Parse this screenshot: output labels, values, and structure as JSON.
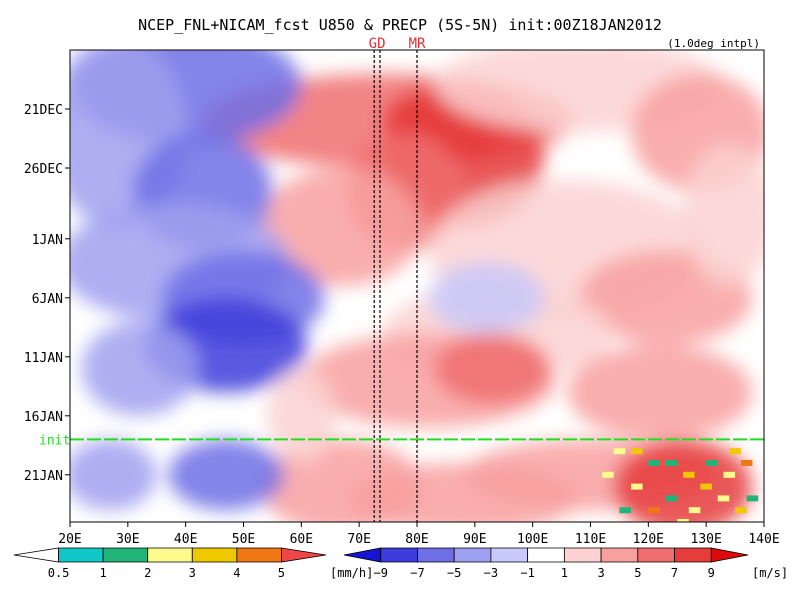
{
  "chart_data": {
    "type": "heatmap",
    "title": "NCEP_FNL+NICAM_fcst U850 & PRECP (5S-5N) init:00Z18JAN2012",
    "note": "(1.0deg intpl)",
    "x_axis": {
      "range": [
        20,
        140
      ],
      "ticks": [
        {
          "value": 20,
          "label": "20E"
        },
        {
          "value": 30,
          "label": "30E"
        },
        {
          "value": 40,
          "label": "40E"
        },
        {
          "value": 50,
          "label": "50E"
        },
        {
          "value": 60,
          "label": "60E"
        },
        {
          "value": 70,
          "label": "70E"
        },
        {
          "value": 80,
          "label": "80E"
        },
        {
          "value": 90,
          "label": "90E"
        },
        {
          "value": 100,
          "label": "100E"
        },
        {
          "value": 110,
          "label": "110E"
        },
        {
          "value": 120,
          "label": "120E"
        },
        {
          "value": 130,
          "label": "130E"
        },
        {
          "value": 140,
          "label": "140E"
        }
      ]
    },
    "y_axis": {
      "range": [
        "2011-12-16",
        "2012-01-25"
      ],
      "inverted": true,
      "ticks": [
        {
          "value": "2011-12-21",
          "label": "21DEC"
        },
        {
          "value": "2011-12-26",
          "label": "26DEC"
        },
        {
          "value": "2012-01-01",
          "label": "1JAN"
        },
        {
          "value": "2012-01-06",
          "label": "6JAN"
        },
        {
          "value": "2012-01-11",
          "label": "11JAN"
        },
        {
          "value": "2012-01-16",
          "label": "16JAN"
        },
        {
          "value": "2012-01-21",
          "label": "21JAN"
        }
      ]
    },
    "init_line": {
      "label": "init",
      "value": "2012-01-18",
      "color": "#22dd22"
    },
    "reference_lines": [
      {
        "label": "GD",
        "values": [
          72.6,
          73.6
        ],
        "color": "#e03030"
      },
      {
        "label": "MR",
        "values": [
          80
        ],
        "color": "#e03030"
      }
    ],
    "precip_colorbar": {
      "unit": "[mm/h]",
      "labels": [
        "0.5",
        "1",
        "2",
        "3",
        "4",
        "5"
      ],
      "colors": [
        "#ffffff",
        "#10c8c8",
        "#20b478",
        "#fffa8c",
        "#f0c800",
        "#f07814",
        "#f04646"
      ]
    },
    "u850_colorbar": {
      "unit": "[m/s]",
      "labels": [
        "−9",
        "−7",
        "−5",
        "−3",
        "−1",
        "1",
        "3",
        "5",
        "7",
        "9"
      ],
      "colors": [
        "#1414d2",
        "#3c3cdc",
        "#6e6ee6",
        "#a0a0f0",
        "#c8c8fa",
        "#ffffff",
        "#fcd2d2",
        "#f8a0a0",
        "#f06e6e",
        "#e63c3c",
        "#dc0a0a"
      ]
    },
    "u850_blobs": [
      {
        "lon": 75,
        "date": "2011-12-22",
        "rlon": 32,
        "rdays": 4,
        "u": 6
      },
      {
        "lon": 88,
        "date": "2011-12-25",
        "rlon": 14,
        "rdays": 6,
        "u": 9
      },
      {
        "lon": 86,
        "date": "2011-12-22",
        "rlon": 12,
        "rdays": 3,
        "u": 8
      },
      {
        "lon": 78,
        "date": "2011-12-28",
        "rlon": 10,
        "rdays": 5,
        "u": 7
      },
      {
        "lon": 67,
        "date": "2011-12-31",
        "rlon": 14,
        "rdays": 5,
        "u": 5
      },
      {
        "lon": 108,
        "date": "2011-12-19",
        "rlon": 25,
        "rdays": 4,
        "u": 3
      },
      {
        "lon": 129,
        "date": "2011-12-23",
        "rlon": 12,
        "rdays": 5,
        "u": 4
      },
      {
        "lon": 106,
        "date": "2012-01-02",
        "rlon": 24,
        "rdays": 6,
        "u": 3
      },
      {
        "lon": 123,
        "date": "2012-01-06",
        "rlon": 15,
        "rdays": 4,
        "u": 4
      },
      {
        "lon": 94,
        "date": "2012-01-09",
        "rlon": 20,
        "rdays": 4,
        "u": 2
      },
      {
        "lon": 82,
        "date": "2012-01-13",
        "rlon": 22,
        "rdays": 4,
        "u": 5
      },
      {
        "lon": 93,
        "date": "2012-01-12",
        "rlon": 10,
        "rdays": 3,
        "u": 6
      },
      {
        "lon": 122,
        "date": "2012-01-14",
        "rlon": 16,
        "rdays": 4,
        "u": 5
      },
      {
        "lon": 110,
        "date": "2012-01-21",
        "rlon": 22,
        "rdays": 3,
        "u": 4
      },
      {
        "lon": 126,
        "date": "2012-01-22",
        "rlon": 12,
        "rdays": 4,
        "u": 8
      },
      {
        "lon": 88,
        "date": "2012-01-23",
        "rlon": 20,
        "rdays": 3,
        "u": 4
      },
      {
        "lon": 67,
        "date": "2012-01-22",
        "rlon": 14,
        "rdays": 4,
        "u": 4
      },
      {
        "lon": 134,
        "date": "2011-12-30",
        "rlon": 8,
        "rdays": 6,
        "u": 2
      },
      {
        "lon": 40,
        "date": "2011-12-19",
        "rlon": 20,
        "rdays": 5,
        "u": -5
      },
      {
        "lon": 28,
        "date": "2011-12-23",
        "rlon": 12,
        "rdays": 8,
        "u": -4
      },
      {
        "lon": 43,
        "date": "2011-12-28",
        "rlon": 12,
        "rdays": 5,
        "u": -6
      },
      {
        "lon": 38,
        "date": "2012-01-03",
        "rlon": 20,
        "rdays": 5,
        "u": -4
      },
      {
        "lon": 50,
        "date": "2012-01-06",
        "rlon": 14,
        "rdays": 4,
        "u": -5
      },
      {
        "lon": 47,
        "date": "2012-01-10",
        "rlon": 14,
        "rdays": 4,
        "u": -8
      },
      {
        "lon": 32,
        "date": "2012-01-12",
        "rlon": 10,
        "rdays": 4,
        "u": -3
      },
      {
        "lon": 47,
        "date": "2012-01-21",
        "rlon": 10,
        "rdays": 3,
        "u": -5
      },
      {
        "lon": 27,
        "date": "2012-01-21",
        "rlon": 8,
        "rdays": 3,
        "u": -3
      },
      {
        "lon": 92,
        "date": "2012-01-06",
        "rlon": 10,
        "rdays": 3,
        "u": -1
      },
      {
        "lon": 60,
        "date": "2012-01-16",
        "rlon": 6,
        "rdays": 4,
        "u": 3
      }
    ],
    "precip_cells": [
      {
        "lon": 115,
        "date": "2012-01-19",
        "value": 2,
        "size": 2
      },
      {
        "lon": 118,
        "date": "2012-01-19",
        "value": 3,
        "size": 2
      },
      {
        "lon": 121,
        "date": "2012-01-20",
        "value": 1,
        "size": 2
      },
      {
        "lon": 127,
        "date": "2012-01-21",
        "value": 3,
        "size": 2
      },
      {
        "lon": 131,
        "date": "2012-01-20",
        "value": 1,
        "size": 2
      },
      {
        "lon": 134,
        "date": "2012-01-21",
        "value": 2,
        "size": 2
      },
      {
        "lon": 137,
        "date": "2012-01-20",
        "value": 4,
        "size": 2
      },
      {
        "lon": 118,
        "date": "2012-01-22",
        "value": 2,
        "size": 2
      },
      {
        "lon": 124,
        "date": "2012-01-23",
        "value": 1,
        "size": 2
      },
      {
        "lon": 130,
        "date": "2012-01-22",
        "value": 3,
        "size": 2
      },
      {
        "lon": 133,
        "date": "2012-01-23",
        "value": 2,
        "size": 2
      },
      {
        "lon": 136,
        "date": "2012-01-24",
        "value": 3,
        "size": 2
      },
      {
        "lon": 116,
        "date": "2012-01-24",
        "value": 1,
        "size": 2
      },
      {
        "lon": 121,
        "date": "2012-01-24",
        "value": 4,
        "size": 2
      },
      {
        "lon": 128,
        "date": "2012-01-24",
        "value": 2,
        "size": 2
      },
      {
        "lon": 138,
        "date": "2012-01-23",
        "value": 1,
        "size": 2
      },
      {
        "lon": 124,
        "date": "2012-01-20",
        "value": 1,
        "size": 2
      },
      {
        "lon": 113,
        "date": "2012-01-21",
        "value": 2,
        "size": 2
      },
      {
        "lon": 135,
        "date": "2012-01-19",
        "value": 3,
        "size": 2
      },
      {
        "lon": 126,
        "date": "2012-01-25",
        "value": 2,
        "size": 2
      }
    ]
  }
}
